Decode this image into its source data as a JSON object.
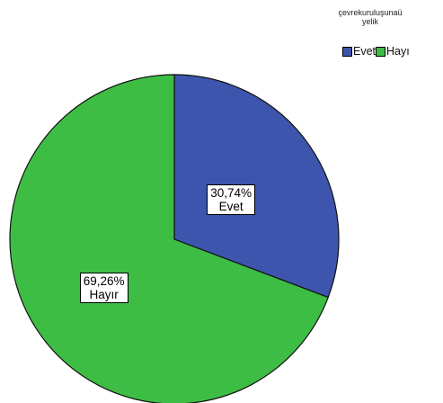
{
  "chart_data": {
    "type": "pie",
    "legend_title": "çevrekuruluşunaü yelik",
    "legend_title_lines": [
      "çevrekuruluşunaü",
      "yelik"
    ],
    "legend_position": "top-right",
    "categories": [
      "Evet",
      "Hayı"
    ],
    "values": [
      30.74,
      69.26
    ],
    "slice_labels": [
      {
        "percent": "30,74%",
        "name": "Evet"
      },
      {
        "percent": "69,26%",
        "name": "Hayır"
      }
    ],
    "colors": [
      "#3d55ac",
      "#3ebd45"
    ],
    "start_angle": "12 o'clock",
    "direction": "clockwise"
  }
}
